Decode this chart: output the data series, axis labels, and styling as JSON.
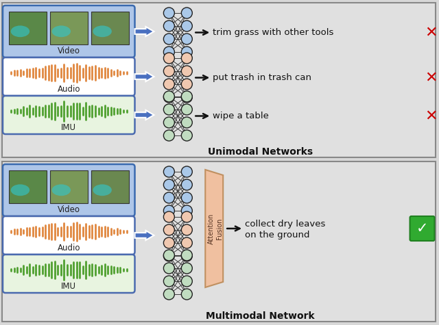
{
  "background_color": "#d8d8d8",
  "panel_bg": "#e0e0e0",
  "panel_border": "#888888",
  "top_label": "Unimodal Networks",
  "bottom_label": "Multimodal Network",
  "video_box_bg": "#aec6e8",
  "video_box_border": "#3a6aaf",
  "audio_box_bg": "#ffffff",
  "audio_box_border": "#4a6aaf",
  "imu_box_bg": "#e8f4e0",
  "imu_box_border": "#4a6aaf",
  "audio_waveform_color": "#e08840",
  "imu_waveform_color": "#50a030",
  "nn_blue_color": "#aac8e8",
  "nn_peach_color": "#f0c8b0",
  "nn_green_color": "#c0dcc0",
  "nn_edge_color": "#222222",
  "arrow_block_fill": "#4a70c0",
  "arrow_block_edge": "#6090e0",
  "arrow_thin_color": "#111111",
  "top_predictions": [
    "trim grass with other tools",
    "put trash in trash can",
    "wipe a table"
  ],
  "bottom_prediction_line1": "collect dry leaves",
  "bottom_prediction_line2": "on the ground",
  "cross_symbol": "✕",
  "check_symbol": "✓",
  "cross_color": "#cc0000",
  "check_bg": "#30aa30",
  "check_text_color": "#ffffff",
  "attn_fill": "#f0c0a0",
  "attn_edge": "#c09060",
  "text_color": "#111111",
  "label_fontsize": 10,
  "pred_fontsize": 9.5,
  "modal_label_fontsize": 8.5
}
